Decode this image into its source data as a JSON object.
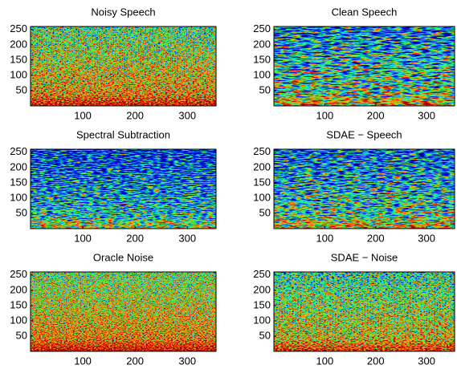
{
  "chart_data": [
    {
      "type": "image",
      "title": "Noisy Speech",
      "xlim": [
        0,
        355
      ],
      "ylim": [
        0,
        260
      ],
      "xticks": [
        100,
        200,
        300
      ],
      "yticks": [
        50,
        100,
        150,
        200,
        250
      ]
    },
    {
      "type": "image",
      "title": "Clean Speech",
      "xlim": [
        0,
        355
      ],
      "ylim": [
        0,
        260
      ],
      "xticks": [
        100,
        200,
        300
      ],
      "yticks": [
        50,
        100,
        150,
        200,
        250
      ]
    },
    {
      "type": "image",
      "title": "Spectral Subtraction",
      "xlim": [
        0,
        355
      ],
      "ylim": [
        0,
        260
      ],
      "xticks": [
        100,
        200,
        300
      ],
      "yticks": [
        50,
        100,
        150,
        200,
        250
      ]
    },
    {
      "type": "image",
      "title": "SDAE − Speech",
      "xlim": [
        0,
        355
      ],
      "ylim": [
        0,
        260
      ],
      "xticks": [
        100,
        200,
        300
      ],
      "yticks": [
        50,
        100,
        150,
        200,
        250
      ]
    },
    {
      "type": "image",
      "title": "Oracle Noise",
      "xlim": [
        0,
        355
      ],
      "ylim": [
        0,
        260
      ],
      "xticks": [
        100,
        200,
        300
      ],
      "yticks": [
        50,
        100,
        150,
        200,
        250
      ]
    },
    {
      "type": "image",
      "title": "SDAE − Noise",
      "xlim": [
        0,
        355
      ],
      "ylim": [
        0,
        260
      ],
      "xticks": [
        100,
        200,
        300
      ],
      "yticks": [
        50,
        100,
        150,
        200,
        250
      ]
    }
  ]
}
